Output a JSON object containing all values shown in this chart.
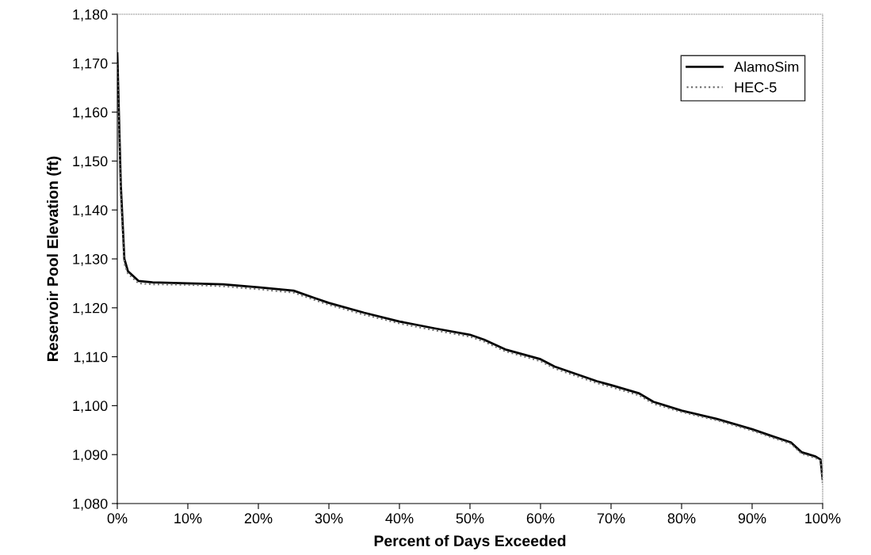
{
  "chart_data": {
    "type": "line",
    "xlabel": "Percent of Days Exceeded",
    "ylabel": "Reservoir Pool Elevation (ft)",
    "xlim": [
      0,
      100
    ],
    "ylim": [
      1080,
      1180
    ],
    "xticks": [
      {
        "value": 0,
        "label": "0%"
      },
      {
        "value": 10,
        "label": "10%"
      },
      {
        "value": 20,
        "label": "20%"
      },
      {
        "value": 30,
        "label": "30%"
      },
      {
        "value": 40,
        "label": "40%"
      },
      {
        "value": 50,
        "label": "50%"
      },
      {
        "value": 60,
        "label": "60%"
      },
      {
        "value": 70,
        "label": "70%"
      },
      {
        "value": 80,
        "label": "80%"
      },
      {
        "value": 90,
        "label": "90%"
      },
      {
        "value": 100,
        "label": "100%"
      }
    ],
    "yticks": [
      {
        "value": 1080,
        "label": "1,080"
      },
      {
        "value": 1090,
        "label": "1,090"
      },
      {
        "value": 1100,
        "label": "1,100"
      },
      {
        "value": 1110,
        "label": "1,110"
      },
      {
        "value": 1120,
        "label": "1,120"
      },
      {
        "value": 1130,
        "label": "1,130"
      },
      {
        "value": 1140,
        "label": "1,140"
      },
      {
        "value": 1150,
        "label": "1,150"
      },
      {
        "value": 1160,
        "label": "1,160"
      },
      {
        "value": 1170,
        "label": "1,170"
      },
      {
        "value": 1180,
        "label": "1,180"
      }
    ],
    "grid": false,
    "legend": "top right",
    "marker": "none",
    "series": [
      {
        "name": "AlamoSim",
        "color": "#000000",
        "line_style": "solid",
        "x": [
          0,
          0.5,
          1,
          1.5,
          3,
          5,
          10,
          15,
          20,
          25,
          28,
          30,
          35,
          40,
          45,
          50,
          52,
          55,
          60,
          62,
          65,
          68,
          70,
          74,
          76,
          80,
          85,
          90,
          93,
          95.5,
          97,
          99,
          99.7,
          100
        ],
        "values": [
          1172,
          1145,
          1130,
          1127.5,
          1125.5,
          1125.2,
          1125,
          1124.8,
          1124.2,
          1123.5,
          1122,
          1121,
          1119,
          1117.2,
          1115.8,
          1114.5,
          1113.5,
          1111.5,
          1109.5,
          1108,
          1106.5,
          1105,
          1104.2,
          1102.5,
          1100.8,
          1099,
          1097.3,
          1095.2,
          1093.7,
          1092.5,
          1090.5,
          1089.6,
          1089,
          1085
        ]
      },
      {
        "name": "HEC-5",
        "color": "#707070",
        "line_style": "dotted",
        "x": [
          0,
          0.5,
          1,
          1.5,
          3,
          5,
          10,
          15,
          20,
          25,
          28,
          30,
          35,
          40,
          45,
          50,
          52,
          55,
          60,
          62,
          65,
          68,
          70,
          74,
          76,
          80,
          85,
          90,
          93,
          95.5,
          97,
          99,
          99.7,
          100
        ],
        "values": [
          1170,
          1143,
          1129,
          1127,
          1125,
          1124.8,
          1124.7,
          1124.4,
          1123.8,
          1123.1,
          1121.6,
          1120.6,
          1118.6,
          1116.8,
          1115.4,
          1114.1,
          1113.1,
          1111.1,
          1109.1,
          1107.6,
          1106.1,
          1104.6,
          1103.8,
          1102.1,
          1100.4,
          1098.7,
          1097,
          1094.9,
          1093.4,
          1092.2,
          1090.2,
          1089.3,
          1088.7,
          1084
        ]
      }
    ]
  }
}
